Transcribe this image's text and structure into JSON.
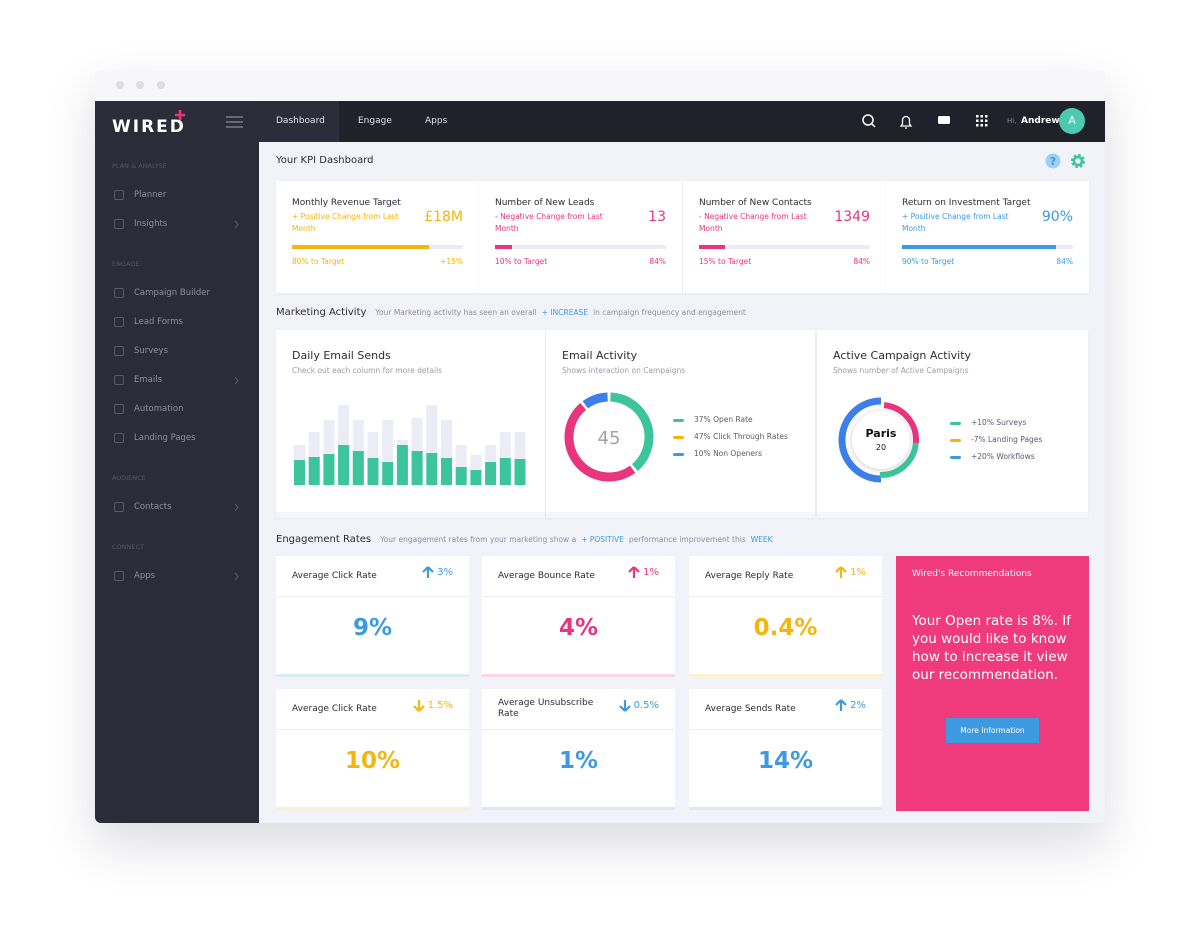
{
  "brand": "WIRED",
  "nav": {
    "items": [
      "Dashboard",
      "Engage",
      "Apps"
    ],
    "active": 0
  },
  "user": {
    "greeting": "Hi,",
    "name": "Andrew",
    "initial": "A"
  },
  "sidebar": [
    {
      "heading": "PLAN & ANALYSE",
      "items": [
        {
          "label": "Planner",
          "chevron": false
        },
        {
          "label": "Insights",
          "chevron": true
        }
      ]
    },
    {
      "heading": "ENGAGE",
      "items": [
        {
          "label": "Campaign Builder",
          "chevron": false
        },
        {
          "label": "Lead Forms",
          "chevron": false
        },
        {
          "label": "Surveys",
          "chevron": false
        },
        {
          "label": "Emails",
          "chevron": true
        },
        {
          "label": "Automation",
          "chevron": false
        },
        {
          "label": "Landing Pages",
          "chevron": false
        }
      ]
    },
    {
      "heading": "AUDIENCE",
      "items": [
        {
          "label": "Contacts",
          "chevron": true
        }
      ]
    },
    {
      "heading": "CONNECT",
      "items": [
        {
          "label": "Apps",
          "chevron": true
        }
      ]
    }
  ],
  "kpi": {
    "title": "Your KPI Dashboard",
    "cards": [
      {
        "title": "Monthly Revenue Target",
        "change": "+ Positive Change from Last Month",
        "value": "£18M",
        "progress": 80,
        "progress_label": "80% to Target",
        "delta": "+15%",
        "color": "#f5b50f"
      },
      {
        "title": "Number of New Leads",
        "change": "- Negative Change from Last Month",
        "value": "13",
        "progress": 10,
        "progress_label": "10% to Target",
        "delta": "84%",
        "color": "#e8357d"
      },
      {
        "title": "Number of New Contacts",
        "change": "- Negative Change from Last Month",
        "value": "1349",
        "progress": 15,
        "progress_label": "15% to Target",
        "delta": "84%",
        "color": "#e8357d"
      },
      {
        "title": "Return on Investment Target",
        "change": "+ Positive Change from Last Month",
        "value": "90%",
        "progress": 90,
        "progress_label": "90% to Target",
        "delta": "84%",
        "color": "#3d9ae0"
      }
    ]
  },
  "marketing": {
    "title": "Marketing Activity",
    "summary": "Your Marketing activity has seen an overall",
    "highlight": "+ INCREASE",
    "summary_end": "in campaign frequency and engagement",
    "email_sends": {
      "title": "Daily Email Sends",
      "subtitle": "Check out each column for more details",
      "chart_data": {
        "type": "bar",
        "values": [
          25,
          28,
          31,
          40,
          34,
          27,
          23,
          40,
          34,
          32,
          27,
          18,
          15,
          23,
          27,
          26
        ],
        "background_values": [
          40,
          53,
          65,
          80,
          65,
          53,
          65,
          45,
          67,
          80,
          65,
          40,
          30,
          40,
          53,
          53
        ],
        "color": "#3cc59c",
        "background_color": "#ececf6",
        "ylim": [
          0,
          80
        ]
      }
    },
    "email_activity": {
      "title": "Email Activity",
      "subtitle": "Shows interaction on Campaigns",
      "center": 45,
      "series": [
        {
          "value": 37,
          "value_label": "37%",
          "label": "Open Rate",
          "color": "#3cc59c",
          "segment_color": "#3cc59c"
        },
        {
          "value": 47,
          "value_label": "47%",
          "label": "Click Through Rates",
          "color": "#f5b50f",
          "segment_color": "#e8357d"
        },
        {
          "value": 10,
          "value_label": "10%",
          "label": "Non Openers",
          "color": "#3d9ae0",
          "segment_color": "#3d7fe8"
        }
      ]
    },
    "campaign_activity": {
      "title": "Active Campaign Activity",
      "subtitle": "Shows number of Active Campaigns",
      "center_title": "Paris",
      "center_value": 20,
      "legend": [
        {
          "label": "+10% Surveys",
          "color": "#3cc59c"
        },
        {
          "label": "-7% Landing Pages",
          "color": "#f5b50f"
        },
        {
          "label": "+20% Workflows",
          "color": "#3d9ae0"
        }
      ]
    }
  },
  "engagement": {
    "title": "Engagement Rates",
    "summary": "Your engagement rates from your marketing show a",
    "highlight": "+ POSITIVE",
    "summary_mid": "performance improvement this",
    "highlight_end": "WEEK",
    "cards": [
      {
        "title": "Average Click Rate",
        "change": "3%",
        "direction": "up",
        "change_color": "#3d9ae0",
        "value": "9%",
        "color": "#3d9ae0"
      },
      {
        "title": "Average Bounce Rate",
        "change": "1%",
        "direction": "up",
        "change_color": "#e8357d",
        "value": "4%",
        "color": "#e8357d"
      },
      {
        "title": "Average Reply Rate",
        "change": "1%",
        "direction": "up",
        "change_color": "#f5b50f",
        "value": "0.4%",
        "color": "#f5b50f"
      },
      {
        "title": "Average Click Rate",
        "change": "1.5%",
        "direction": "down",
        "change_color": "#f5b50f",
        "value": "10%",
        "color": "#f5b50f"
      },
      {
        "title": "Average Unsubscribe Rate",
        "change": "0.5%",
        "direction": "down",
        "change_color": "#3d9ae0",
        "value": "1%",
        "color": "#3d9ae0"
      },
      {
        "title": "Average Sends Rate",
        "change": "2%",
        "direction": "up",
        "change_color": "#3d9ae0",
        "value": "14%",
        "color": "#3d9ae0"
      }
    ],
    "recommendation": {
      "title": "Wired's Recommendations",
      "body": "Your Open rate is 8%. If you would like to know how to increase it view our recommendation.",
      "button": "More Information"
    }
  }
}
